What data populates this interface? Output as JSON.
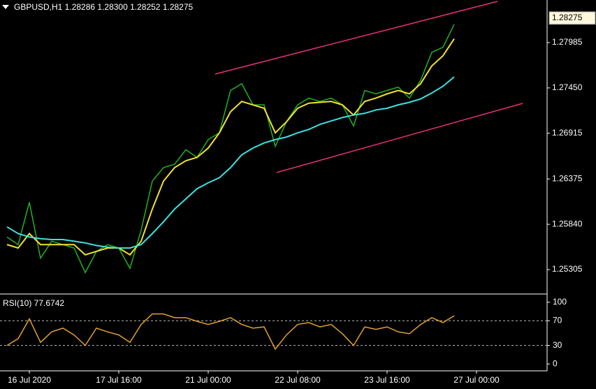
{
  "chart_data": [
    {
      "type": "line",
      "title": "GBPUSD,H1  1.28286 1.28300 1.28252 1.28275",
      "current_price": 1.28275,
      "categories": [
        null,
        null,
        "16 Jul 2020",
        null,
        null,
        null,
        null,
        null,
        null,
        null,
        "17 Jul 16:00",
        null,
        null,
        null,
        null,
        null,
        null,
        null,
        "21 Jul 00:00",
        null,
        null,
        null,
        null,
        null,
        null,
        null,
        "22 Jul 08:00",
        null,
        null,
        null,
        null,
        null,
        null,
        null,
        "23 Jul 16:00",
        null,
        null,
        null,
        null,
        null,
        null,
        null,
        "27 Jul 00:00"
      ],
      "series": [
        {
          "color": "#22b022",
          "values": [
            1.2569,
            1.256,
            1.261,
            1.2544,
            1.2564,
            1.256,
            1.2556,
            1.2527,
            1.2552,
            1.256,
            1.2556,
            1.2532,
            1.2577,
            1.2635,
            1.2651,
            1.2655,
            1.2672,
            1.2663,
            1.2684,
            1.2692,
            1.2742,
            1.275,
            1.2725,
            1.2725,
            1.2676,
            1.2705,
            1.2725,
            1.2733,
            1.2729,
            1.2733,
            1.2725,
            1.27,
            1.2742,
            1.2738,
            1.2742,
            1.2746,
            1.2733,
            1.2754,
            1.2787,
            1.2793,
            1.282,
            null,
            null
          ]
        },
        {
          "color": "#f2e030",
          "values": [
            1.256,
            1.2556,
            1.2573,
            1.256,
            1.256,
            1.256,
            1.256,
            1.2548,
            1.2552,
            1.2556,
            1.2556,
            1.2548,
            1.2564,
            1.2602,
            1.2635,
            1.2651,
            1.2659,
            1.2663,
            1.2674,
            1.2692,
            1.2717,
            1.2729,
            1.2725,
            1.2721,
            1.2692,
            1.2705,
            1.2721,
            1.2727,
            1.2728,
            1.2729,
            1.2725,
            1.2713,
            1.2729,
            1.2733,
            1.2738,
            1.2742,
            1.2738,
            1.275,
            1.2771,
            1.2783,
            1.2803,
            null,
            null
          ]
        },
        {
          "color": "#3ee0e0",
          "values": [
            1.2581,
            1.2573,
            1.2569,
            1.2567,
            1.2566,
            1.2566,
            1.2564,
            1.2562,
            1.2559,
            1.2557,
            1.2556,
            1.2556,
            1.256,
            1.2573,
            1.2587,
            1.2602,
            1.2614,
            1.2626,
            1.2633,
            1.2639,
            1.2651,
            1.2666,
            1.2674,
            1.268,
            1.2684,
            1.2687,
            1.2692,
            1.2696,
            1.2702,
            1.2706,
            1.271,
            1.2713,
            1.2715,
            1.2719,
            1.2721,
            1.2725,
            1.2728,
            1.2732,
            1.2739,
            1.2747,
            1.2758,
            null,
            null
          ]
        }
      ],
      "ylim": [
        1.25025,
        1.28488
      ],
      "yticks": [
        1.27985,
        {
          "value": 1.2745,
          "label": "1.27450"
        },
        1.26915,
        1.26375,
        {
          "value": 1.2584,
          "label": "1.25840"
        },
        1.25305
      ]
    },
    {
      "type": "line",
      "title": "RSI(10) 77.6742",
      "series": [
        {
          "color": "#e0a030",
          "values": [
            30,
            41,
            73,
            35,
            52,
            58,
            47,
            30,
            58,
            52,
            47,
            35,
            64,
            81,
            81,
            75,
            75,
            69,
            64,
            69,
            75,
            64,
            58,
            60,
            24,
            47,
            64,
            67,
            60,
            64,
            49,
            30,
            60,
            56,
            60,
            52,
            49,
            64,
            75,
            67,
            78,
            null,
            null
          ]
        }
      ],
      "ylim": [
        -10,
        111
      ],
      "yticks": [
        100,
        70,
        30,
        0
      ],
      "levels": [
        70,
        30
      ]
    }
  ]
}
